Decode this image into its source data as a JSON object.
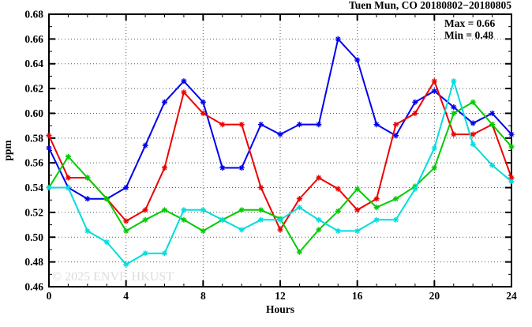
{
  "title": "Tuen Mun, CO 20180802−20180805",
  "watermark": "© 2025 ENVF, HKUST",
  "annotation": {
    "max_label": "Max = 0.66",
    "min_label": "Min = 0.48"
  },
  "axes": {
    "xlabel": "Hours",
    "ylabel": "ppm",
    "x_tick_labels": [
      "0",
      "4",
      "8",
      "12",
      "16",
      "20",
      "24"
    ],
    "y_tick_labels": [
      "0.46",
      "0.48",
      "0.50",
      "0.52",
      "0.54",
      "0.56",
      "0.58",
      "0.60",
      "0.62",
      "0.64",
      "0.66",
      "0.68"
    ]
  },
  "chart_data": {
    "type": "line",
    "title": "Tuen Mun, CO 20180802−20180805",
    "xlabel": "Hours",
    "ylabel": "ppm",
    "xlim": [
      0,
      24
    ],
    "ylim": [
      0.46,
      0.68
    ],
    "x_major_tick_step": 4,
    "x_minor_tick_step": 1,
    "y_major_tick_step": 0.02,
    "y_minor_tick_step": 0.01,
    "grid": "dotted-at-major-ticks",
    "legend_position": "none",
    "annotations": [
      "Max = 0.66",
      "Min = 0.48"
    ],
    "max": 0.66,
    "min": 0.48,
    "x": [
      0,
      1,
      2,
      3,
      4,
      5,
      6,
      7,
      8,
      9,
      10,
      11,
      12,
      13,
      14,
      15,
      16,
      17,
      18,
      19,
      20,
      21,
      22,
      23,
      24
    ],
    "series": [
      {
        "name": "blue",
        "color": "#0000ee",
        "marker": "asterisk",
        "values": [
          0.572,
          0.54,
          0.531,
          0.531,
          0.54,
          0.574,
          0.609,
          0.626,
          0.609,
          0.556,
          0.556,
          0.591,
          0.583,
          0.591,
          0.591,
          0.66,
          0.643,
          0.591,
          0.582,
          0.609,
          0.618,
          0.605,
          0.592,
          0.6,
          0.583
        ]
      },
      {
        "name": "red",
        "color": "#ee0000",
        "marker": "asterisk",
        "values": [
          0.582,
          0.548,
          0.548,
          0.531,
          0.513,
          0.522,
          0.556,
          0.617,
          0.6,
          0.591,
          0.591,
          0.54,
          0.506,
          0.531,
          0.548,
          0.539,
          0.522,
          0.531,
          0.591,
          0.6,
          0.626,
          0.583,
          0.583,
          0.591,
          0.548
        ]
      },
      {
        "name": "green",
        "color": "#00cc00",
        "marker": "asterisk",
        "values": [
          0.54,
          0.565,
          0.548,
          0.531,
          0.505,
          0.514,
          0.522,
          0.514,
          0.505,
          0.514,
          0.522,
          0.522,
          0.515,
          0.488,
          0.506,
          0.521,
          0.539,
          0.524,
          0.531,
          0.541,
          0.556,
          0.6,
          0.609,
          0.591,
          0.573
        ]
      },
      {
        "name": "cyan",
        "color": "#00dddd",
        "marker": "asterisk",
        "values": [
          0.54,
          0.54,
          0.505,
          0.496,
          0.478,
          0.487,
          0.487,
          0.522,
          0.522,
          0.514,
          0.506,
          0.514,
          0.514,
          0.524,
          0.514,
          0.505,
          0.505,
          0.514,
          0.514,
          0.539,
          0.572,
          0.626,
          0.575,
          0.558,
          0.545
        ]
      }
    ]
  },
  "style": {
    "frame_color": "#000000",
    "grid_color": "#555555",
    "watermark_color": "#dcdcdc",
    "text_color": "#000000"
  }
}
